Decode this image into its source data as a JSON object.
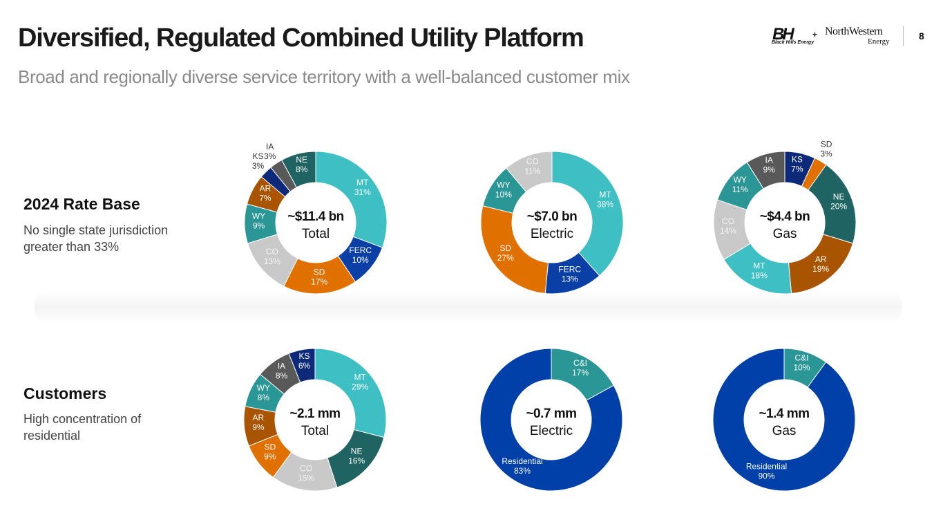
{
  "header": {
    "title": "Diversified, Regulated Combined Utility Platform",
    "subtitle": "Broad and regionally diverse service territory with a well-balanced customer mix",
    "logo_left_mark": "BH",
    "logo_left": "Black Hills Energy",
    "logo_plus": "+",
    "logo_right_1": "NorthWestern",
    "logo_right_2": "Energy",
    "page": "8"
  },
  "sections": [
    {
      "heading": "2024 Rate Base",
      "text": "No single state jurisdiction greater than 33%"
    },
    {
      "heading": "Customers",
      "text": "High concentration of residential"
    }
  ],
  "chart_data": [
    {
      "type": "donut",
      "center_label": "~$11.4 bn",
      "center_sublabel": "Total",
      "categories": [
        "MT",
        "FERC",
        "SD",
        "CO",
        "WY",
        "AR",
        "KS",
        "IA",
        "NE"
      ],
      "values": [
        31,
        10,
        17,
        13,
        9,
        7,
        3,
        3,
        8
      ],
      "value_labels": [
        "31%",
        "10%",
        "17%",
        "13%",
        "9%",
        "7%",
        "3%",
        "3%",
        "8%"
      ],
      "colors": [
        "#3dbfc4",
        "#0a3fa6",
        "#e07000",
        "#c9c9c9",
        "#2a9696",
        "#a85400",
        "#0d2a7a",
        "#595959",
        "#1f6363"
      ]
    },
    {
      "type": "donut",
      "center_label": "~$7.0 bn",
      "center_sublabel": "Electric",
      "categories": [
        "MT",
        "FERC",
        "SD",
        "WY",
        "CO"
      ],
      "values": [
        38,
        13,
        27,
        10,
        11
      ],
      "value_labels": [
        "38%",
        "13%",
        "27%",
        "10%",
        "11%"
      ],
      "colors": [
        "#3dbfc4",
        "#0a3fa6",
        "#e07000",
        "#2a9696",
        "#c9c9c9"
      ]
    },
    {
      "type": "donut",
      "center_label": "~$4.4 bn",
      "center_sublabel": "Gas",
      "categories": [
        "KS",
        "SD",
        "NE",
        "AR",
        "MT",
        "CO",
        "WY",
        "IA"
      ],
      "values": [
        7,
        3,
        20,
        19,
        18,
        14,
        11,
        9
      ],
      "value_labels": [
        "7%",
        "3%",
        "20%",
        "19%",
        "18%",
        "14%",
        "11%",
        "9%"
      ],
      "colors": [
        "#0d2a7a",
        "#e07000",
        "#1f6363",
        "#a85400",
        "#3dbfc4",
        "#c9c9c9",
        "#2a9696",
        "#595959"
      ]
    },
    {
      "type": "donut",
      "center_label": "~2.1 mm",
      "center_sublabel": "Total",
      "categories": [
        "MT",
        "NE",
        "CO",
        "SD",
        "AR",
        "WY",
        "IA",
        "KS"
      ],
      "values": [
        29,
        16,
        15,
        9,
        9,
        8,
        8,
        6
      ],
      "value_labels": [
        "29%",
        "16%",
        "15%",
        "9%",
        "9%",
        "8%",
        "8%",
        "6%"
      ],
      "colors": [
        "#3dbfc4",
        "#1f6363",
        "#c9c9c9",
        "#e07000",
        "#a85400",
        "#2a9696",
        "#595959",
        "#0d2a7a"
      ]
    },
    {
      "type": "donut",
      "center_label": "~0.7 mm",
      "center_sublabel": "Electric",
      "categories": [
        "C&I",
        "Residential"
      ],
      "values": [
        17,
        83
      ],
      "value_labels": [
        "17%",
        "83%"
      ],
      "colors": [
        "#2a9696",
        "#0040a8"
      ]
    },
    {
      "type": "donut",
      "center_label": "~1.4 mm",
      "center_sublabel": "Gas",
      "categories": [
        "C&I",
        "Residential"
      ],
      "values": [
        10,
        90
      ],
      "value_labels": [
        "10%",
        "90%"
      ],
      "colors": [
        "#2a9696",
        "#0040a8"
      ]
    }
  ]
}
